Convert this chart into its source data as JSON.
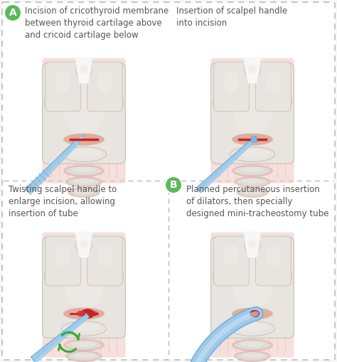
{
  "background_color": "#f7f7f7",
  "border_color": "#bbbbbb",
  "label_A_color": "#5cb85c",
  "label_B_color": "#5cb85c",
  "panel_texts": [
    "Incision of cricothyroid membrane\nbetween thyroid cartilage above\nand cricoid cartilage below",
    "Insertion of scalpel handle\ninto incision",
    "Twisting scalpel handle to\nenlarge incision, allowing\ninsertion of tube",
    "Planned percutaneous insertion\nof dilators, then specially\ndesigned mini-tracheostomy tube"
  ],
  "throat_main": "#e8e4df",
  "throat_light": "#f0ece8",
  "throat_shadow": "#c8c0b8",
  "throat_pink_bg": "#f0c8c0",
  "cartilage_ring": "#e0dbd5",
  "ring_pink": "#e8a8a0",
  "membrane_pink": "#e8a090",
  "incision_color": "#cc2222",
  "hole_color": "#cc3333",
  "scalpel_blue": "#9ecae8",
  "scalpel_light": "#c8e4f4",
  "tube_blue": "#9ecae8",
  "arrow_green": "#33aa33",
  "text_color": "#555555",
  "font_size": 8.5,
  "figsize": [
    4.74,
    5.09
  ],
  "dpi": 100
}
